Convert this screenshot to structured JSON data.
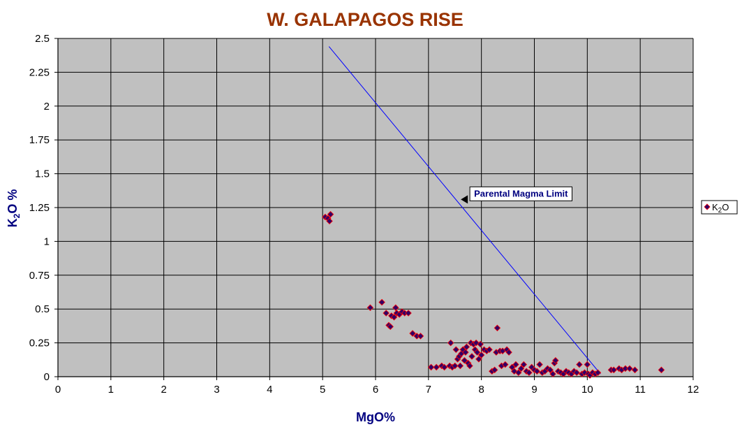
{
  "chart_data": {
    "type": "scatter",
    "title": "W. GALAPAGOS RISE",
    "xlabel": "MgO%",
    "ylabel": "K2O %",
    "xlim": [
      0,
      12
    ],
    "ylim": [
      0,
      2.5
    ],
    "x_ticks": [
      "0",
      "1",
      "2",
      "3",
      "4",
      "5",
      "6",
      "7",
      "8",
      "9",
      "10",
      "11",
      "12"
    ],
    "y_ticks": [
      "0",
      "0.25",
      "0.5",
      "0.75",
      "1",
      "1.25",
      "1.5",
      "1.75",
      "2",
      "2.25",
      "2.5"
    ],
    "grid": true,
    "legend": "right",
    "colors": {
      "plot_background": "#C0C0C0",
      "marker_fill": "#330066",
      "marker_edge": "#FF0000",
      "line": "#0000FF",
      "title": "#993300",
      "axis_title": "#000080"
    },
    "series": [
      {
        "name": "K2O",
        "points": [
          [
            5.05,
            1.18
          ],
          [
            5.1,
            1.17
          ],
          [
            5.13,
            1.15
          ],
          [
            5.15,
            1.2
          ],
          [
            5.9,
            0.51
          ],
          [
            6.12,
            0.55
          ],
          [
            6.2,
            0.47
          ],
          [
            6.25,
            0.38
          ],
          [
            6.28,
            0.37
          ],
          [
            6.3,
            0.45
          ],
          [
            6.35,
            0.44
          ],
          [
            6.38,
            0.51
          ],
          [
            6.4,
            0.47
          ],
          [
            6.45,
            0.46
          ],
          [
            6.5,
            0.48
          ],
          [
            6.55,
            0.47
          ],
          [
            6.62,
            0.47
          ],
          [
            6.7,
            0.32
          ],
          [
            6.78,
            0.3
          ],
          [
            6.85,
            0.3
          ],
          [
            7.05,
            0.07
          ],
          [
            7.15,
            0.07
          ],
          [
            7.25,
            0.08
          ],
          [
            7.3,
            0.07
          ],
          [
            7.4,
            0.08
          ],
          [
            7.42,
            0.25
          ],
          [
            7.45,
            0.07
          ],
          [
            7.5,
            0.08
          ],
          [
            7.52,
            0.2
          ],
          [
            7.55,
            0.13
          ],
          [
            7.58,
            0.15
          ],
          [
            7.6,
            0.08
          ],
          [
            7.62,
            0.17
          ],
          [
            7.65,
            0.2
          ],
          [
            7.68,
            0.12
          ],
          [
            7.7,
            0.18
          ],
          [
            7.72,
            0.22
          ],
          [
            7.75,
            0.1
          ],
          [
            7.78,
            0.08
          ],
          [
            7.8,
            0.25
          ],
          [
            7.82,
            0.15
          ],
          [
            7.85,
            0.24
          ],
          [
            7.88,
            0.2
          ],
          [
            7.9,
            0.25
          ],
          [
            7.92,
            0.18
          ],
          [
            7.95,
            0.13
          ],
          [
            7.98,
            0.24
          ],
          [
            8.0,
            0.16
          ],
          [
            8.05,
            0.2
          ],
          [
            8.1,
            0.19
          ],
          [
            8.15,
            0.2
          ],
          [
            8.2,
            0.04
          ],
          [
            8.25,
            0.05
          ],
          [
            8.28,
            0.18
          ],
          [
            8.3,
            0.36
          ],
          [
            8.35,
            0.19
          ],
          [
            8.38,
            0.08
          ],
          [
            8.4,
            0.19
          ],
          [
            8.45,
            0.09
          ],
          [
            8.48,
            0.2
          ],
          [
            8.52,
            0.18
          ],
          [
            8.58,
            0.07
          ],
          [
            8.62,
            0.04
          ],
          [
            8.65,
            0.09
          ],
          [
            8.7,
            0.03
          ],
          [
            8.75,
            0.06
          ],
          [
            8.8,
            0.09
          ],
          [
            8.85,
            0.04
          ],
          [
            8.9,
            0.03
          ],
          [
            8.95,
            0.07
          ],
          [
            9.0,
            0.05
          ],
          [
            9.05,
            0.04
          ],
          [
            9.1,
            0.09
          ],
          [
            9.15,
            0.03
          ],
          [
            9.2,
            0.04
          ],
          [
            9.25,
            0.06
          ],
          [
            9.3,
            0.05
          ],
          [
            9.35,
            0.02
          ],
          [
            9.38,
            0.1
          ],
          [
            9.4,
            0.12
          ],
          [
            9.45,
            0.04
          ],
          [
            9.5,
            0.03
          ],
          [
            9.55,
            0.02
          ],
          [
            9.6,
            0.04
          ],
          [
            9.65,
            0.03
          ],
          [
            9.7,
            0.02
          ],
          [
            9.75,
            0.04
          ],
          [
            9.8,
            0.03
          ],
          [
            9.85,
            0.09
          ],
          [
            9.9,
            0.02
          ],
          [
            9.95,
            0.03
          ],
          [
            10.0,
            0.09
          ],
          [
            10.02,
            0.02
          ],
          [
            10.05,
            0.01
          ],
          [
            10.1,
            0.03
          ],
          [
            10.15,
            0.02
          ],
          [
            10.2,
            0.03
          ],
          [
            10.45,
            0.05
          ],
          [
            10.5,
            0.05
          ],
          [
            10.6,
            0.06
          ],
          [
            10.65,
            0.05
          ],
          [
            10.72,
            0.06
          ],
          [
            10.8,
            0.06
          ],
          [
            10.9,
            0.05
          ],
          [
            11.4,
            0.05
          ]
        ]
      }
    ],
    "lines": [
      {
        "label": "Parental Magma Limit",
        "points": [
          [
            5.12,
            2.44
          ],
          [
            10.25,
            0.02
          ]
        ]
      }
    ],
    "annotations": [
      {
        "text": "Parental Magma Limit",
        "x": 7.65,
        "y": 1.31
      }
    ]
  }
}
